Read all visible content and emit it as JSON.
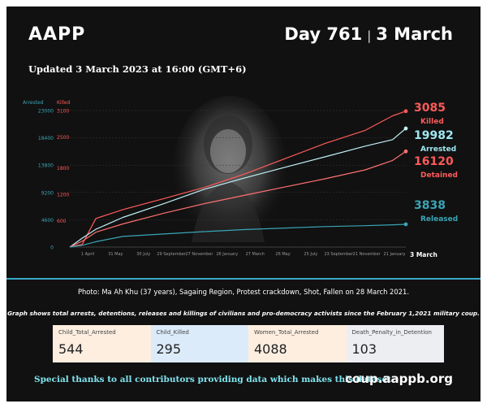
{
  "header": {
    "brand": "AAPP",
    "day": "Day 761",
    "date": "3 March"
  },
  "updated": "Updated 3 March 2023 at 16:00 (GMT+6)",
  "photo_caption": "Photo: Ma Ah Khu (37 years), Sagaing Region, Protest crackdown, Shot, Fallen on 28 March 2021.",
  "graph_caption": "Graph shows total arrests, detentions, releases and killings of civilians and pro-democracy activists since the February 1,2021 military coup.",
  "cards": [
    {
      "label": "Child_Total_Arrested",
      "value": "544",
      "color": "#fdeee0"
    },
    {
      "label": "Child_Killed",
      "value": "295",
      "color": "#dcebfa"
    },
    {
      "label": "Women_Total_Arrested",
      "value": "4088",
      "color": "#fdeee0"
    },
    {
      "label": "Death_Penalty_in_Detention",
      "value": "103",
      "color": "#eceef2"
    }
  ],
  "footer": {
    "thanks": "Special thanks to all contributors providing data which makes this dataset.",
    "site": "coup.aappb.org"
  },
  "colors": {
    "arrested": "#bfeff5",
    "killed": "#ff5a5a",
    "detained": "#ff7070",
    "released": "#3aa5b5",
    "accent": "#3aa9c9"
  },
  "chart_data": {
    "type": "line",
    "xlabel": "",
    "ylabel_left": "Arrested",
    "ylabel_right": "Killed",
    "left_axis": {
      "ticks": [
        "23000",
        "18400",
        "13800",
        "9200",
        "4600",
        "0"
      ],
      "ylim": [
        0,
        23000
      ]
    },
    "right_axis": {
      "ticks": [
        "3100",
        "2500",
        "1800",
        "1200",
        "600"
      ],
      "ylim": [
        0,
        3100
      ]
    },
    "x_ticks": [
      "1 April",
      "31 May",
      "30 July",
      "29 September",
      "27 November",
      "26 January",
      "27 March",
      "26 May",
      "25 July",
      "23 September",
      "21 November",
      "21 January"
    ],
    "end_label": "3 March",
    "series": [
      {
        "name": "Killed",
        "axis": "right",
        "final": "3085",
        "x": [
          "2021-02-01",
          "2021-03-01",
          "2021-04-01",
          "2021-06-01",
          "2021-09-01",
          "2021-12-01",
          "2022-03-01",
          "2022-06-01",
          "2022-09-01",
          "2022-12-01",
          "2023-02-01",
          "2023-03-03"
        ],
        "values": [
          0,
          60,
          650,
          850,
          1100,
          1350,
          1650,
          2000,
          2350,
          2650,
          2980,
          3085
        ]
      },
      {
        "name": "Arrested",
        "axis": "left",
        "final": "19982",
        "x": [
          "2021-02-01",
          "2021-03-01",
          "2021-04-01",
          "2021-06-01",
          "2021-09-01",
          "2021-12-01",
          "2022-03-01",
          "2022-06-01",
          "2022-09-01",
          "2022-12-01",
          "2023-02-01",
          "2023-03-03"
        ],
        "values": [
          0,
          1500,
          3000,
          5000,
          7300,
          9700,
          11600,
          13400,
          15200,
          17000,
          18100,
          19982
        ]
      },
      {
        "name": "Detained",
        "axis": "left",
        "final": "16120",
        "x": [
          "2021-02-01",
          "2021-03-01",
          "2021-04-01",
          "2021-06-01",
          "2021-09-01",
          "2021-12-01",
          "2022-03-01",
          "2022-06-01",
          "2022-09-01",
          "2022-12-01",
          "2023-02-01",
          "2023-03-03"
        ],
        "values": [
          0,
          1000,
          2500,
          3900,
          5700,
          7300,
          8700,
          10100,
          11500,
          13000,
          14600,
          16120
        ]
      },
      {
        "name": "Released",
        "axis": "left",
        "final": "3838",
        "x": [
          "2021-02-01",
          "2021-03-01",
          "2021-04-01",
          "2021-06-01",
          "2021-09-01",
          "2021-12-01",
          "2022-03-01",
          "2022-06-01",
          "2022-09-01",
          "2022-12-01",
          "2023-02-01",
          "2023-03-03"
        ],
        "values": [
          0,
          300,
          900,
          1800,
          2200,
          2600,
          2950,
          3200,
          3450,
          3600,
          3750,
          3838
        ]
      }
    ]
  }
}
